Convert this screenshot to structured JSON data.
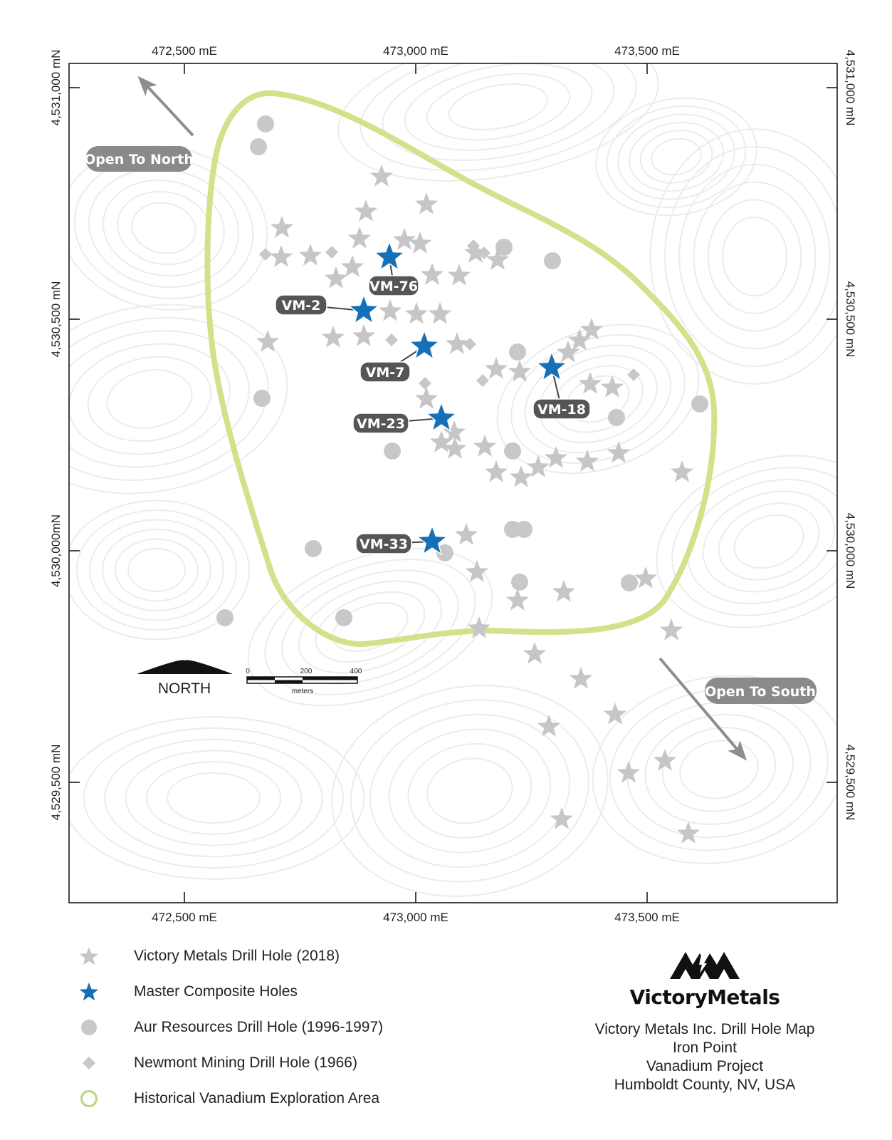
{
  "top_axis_labels": [
    "472,500 mE",
    "473,000 mE",
    "473,500 mE"
  ],
  "bottom_axis_labels": [
    "472,500 mE",
    "473,000 mE",
    "473,500 mE"
  ],
  "left_axis_labels": [
    "4,531,000 mN",
    "4,530,500 mN",
    "4,530,000mN",
    "4,529,500 mN"
  ],
  "right_axis_labels": [
    "4,531,000 mN",
    "4,530,500 mN",
    "4,530,000 mN",
    "4,529,500 mN"
  ],
  "callouts": {
    "open_north": "Open To North",
    "open_south": "Open To South"
  },
  "master_holes": [
    "VM-76",
    "VM-2",
    "VM-7",
    "VM-18",
    "VM-23",
    "VM-33"
  ],
  "north_label": "NORTH",
  "scale_bar": {
    "ticks": [
      "0",
      "200",
      "400"
    ],
    "unit": "meters"
  },
  "legend": [
    {
      "symbol": "gray-star-icon",
      "label": "Victory Metals Drill Hole (2018)"
    },
    {
      "symbol": "blue-star-icon",
      "label": "Master Composite Holes"
    },
    {
      "symbol": "gray-circle-icon",
      "label": "Aur Resources Drill Hole (1996-1997)"
    },
    {
      "symbol": "gray-diamond-icon",
      "label": "Newmont Mining Drill Hole (1966)"
    },
    {
      "symbol": "green-ring-icon",
      "label": "Historical Vanadium Exploration Area"
    }
  ],
  "brand": {
    "name": "VictoryMetals",
    "title_lines": [
      "Victory Metals Inc. Drill Hole Map",
      "Iron Point",
      "Vanadium Project",
      "Humboldt County, NV, USA"
    ]
  },
  "colors": {
    "victory_star": "#c6c6c8",
    "master_star": "#1570b8",
    "aur_circle": "#c8c8ca",
    "newmont_diamond": "#c8c8ca",
    "exploration_area": "#d4e08a",
    "label_pill": "#555555",
    "callout_pill": "#8a8a8a"
  }
}
